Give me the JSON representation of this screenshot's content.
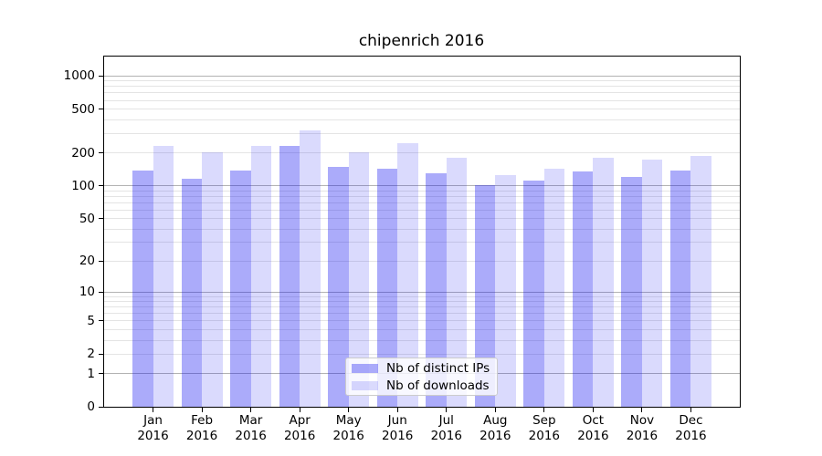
{
  "chart_data": {
    "type": "bar",
    "title": "chipenrich 2016",
    "categories": [
      "Jan 2016",
      "Feb 2016",
      "Mar 2016",
      "Apr 2016",
      "May 2016",
      "Jun 2016",
      "Jul 2016",
      "Aug 2016",
      "Sep 2016",
      "Oct 2016",
      "Nov 2016",
      "Dec 2016"
    ],
    "series": [
      {
        "name": "Nb of distinct IPs",
        "color_hex": "#a9a9f4",
        "color_rgba": "rgba(10,10,240,0.34)",
        "values": [
          137,
          117,
          138,
          233,
          148,
          142,
          129,
          102,
          112,
          134,
          121,
          138
        ]
      },
      {
        "name": "Nb of downloads",
        "color_hex": "#dadaf9",
        "color_rgba": "rgba(10,10,240,0.15)",
        "values": [
          230,
          202,
          232,
          318,
          202,
          245,
          181,
          125,
          144,
          181,
          174,
          189
        ]
      }
    ],
    "yscale": "log1p",
    "ylim": [
      0,
      1500
    ],
    "yticks_labeled": [
      0,
      1,
      2,
      5,
      10,
      20,
      50,
      100,
      200,
      500,
      1000
    ],
    "gridlines_major": [
      1,
      10,
      100,
      1000
    ],
    "gridlines_minor": [
      2,
      3,
      4,
      5,
      6,
      7,
      8,
      9,
      20,
      30,
      40,
      50,
      60,
      70,
      80,
      90,
      200,
      300,
      400,
      500,
      600,
      700,
      800,
      900
    ],
    "xlabel": "",
    "ylabel": "",
    "grid": true,
    "legend_position": "lower center"
  },
  "colors": {
    "major_grid": "#b3b3b3",
    "minor_grid": "#e4e4e4",
    "spine": "#000000",
    "legend_border": "#cccccc"
  }
}
